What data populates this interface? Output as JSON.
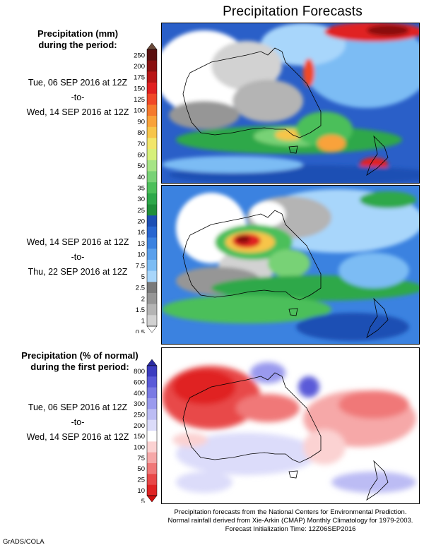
{
  "title": "Precipitation Forecasts",
  "legend1": {
    "heading_line1": "Precipitation (mm)",
    "heading_line2": "during the period:",
    "ticks": [
      "250",
      "200",
      "175",
      "150",
      "125",
      "100",
      "90",
      "80",
      "70",
      "60",
      "50",
      "40",
      "35",
      "30",
      "25",
      "20",
      "16",
      "13",
      "10",
      "7.5",
      "5",
      "2.5",
      "2",
      "1.5",
      "1",
      "0.5"
    ],
    "colors": [
      "#6b4a3a",
      "#5a0f0f",
      "#8a1010",
      "#b81616",
      "#e02020",
      "#f04828",
      "#f57a2e",
      "#f9a23a",
      "#f7c54a",
      "#f2e66a",
      "#d6f07a",
      "#a6e486",
      "#78d276",
      "#4cbf5a",
      "#2ea84a",
      "#1f8f3a",
      "#1c4fb4",
      "#2866d0",
      "#3b82e0",
      "#5aa0ec",
      "#7cbcf4",
      "#a8d6fb",
      "#7a7a7a",
      "#969696",
      "#b4b4b4",
      "#d2d2d2",
      "#ffffff"
    ]
  },
  "period1": {
    "line1": "Tue, 06 SEP 2016 at 12Z",
    "line2": "-to-",
    "line3": "Wed, 14 SEP 2016 at 12Z"
  },
  "period2": {
    "line1": "Wed, 14 SEP 2016 at 12Z",
    "line2": "-to-",
    "line3": "Thu, 22 SEP 2016 at 12Z"
  },
  "legend2": {
    "heading_line1": "Precipitation (% of normal)",
    "heading_line2": "during the first period:",
    "ticks": [
      "800",
      "600",
      "400",
      "300",
      "250",
      "200",
      "150",
      "100",
      "75",
      "50",
      "25",
      "10",
      "5"
    ],
    "colors": [
      "#2a2aa0",
      "#3c3cc0",
      "#5a5ad8",
      "#7a7ae4",
      "#9a9aee",
      "#bcbcf4",
      "#dcdcfa",
      "#ffffff",
      "#fbd2d2",
      "#f6a8a8",
      "#f07878",
      "#e84848",
      "#e02424",
      "#d01010"
    ]
  },
  "period3": {
    "line1": "Tue, 06 SEP 2016 at 12Z",
    "line2": "-to-",
    "line3": "Wed, 14 SEP 2016 at 12Z"
  },
  "footer": {
    "line1": "Precipitation forecasts from the National Centers for Environmental Prediction.",
    "line2": "Normal rainfall derived from Xie-Arkin (CMAP) Monthly Climatology for 1979-2003.",
    "line3": "Forecast Initialization Time: 12Z06SEP2016"
  },
  "credit": "GrADS/COLA"
}
